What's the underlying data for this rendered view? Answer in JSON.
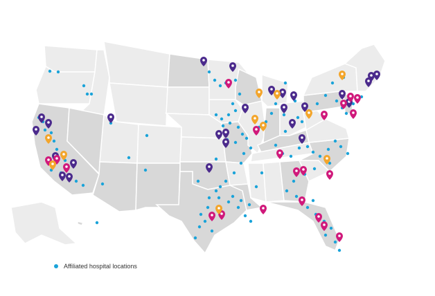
{
  "legend": {
    "label": "Affiliated hospital locations"
  },
  "colors": {
    "background": "#ffffff",
    "state_light": "#ececec",
    "state_mid": "#d8d8d8",
    "state_dark": "#c9c9c9",
    "border": "#ffffff",
    "dot": "#1aa3d9",
    "pin_purple": "#4b2a8c",
    "pin_magenta": "#d0197b",
    "pin_orange": "#f3a52b"
  }
}
